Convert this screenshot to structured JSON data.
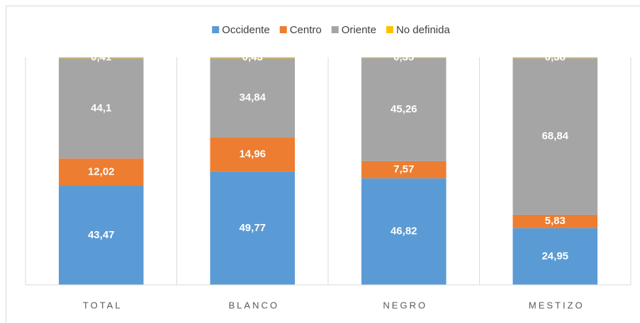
{
  "chart_data": {
    "type": "stacked_bar",
    "categories": [
      "TOTAL",
      "BLANCO",
      "NEGRO",
      "MESTIZO"
    ],
    "series": [
      {
        "name": "Occidente",
        "color": "#5b9bd5",
        "values": [
          43.47,
          49.77,
          46.82,
          24.95
        ],
        "value_labels": [
          "43,47",
          "49,77",
          "46,82",
          "24,95"
        ]
      },
      {
        "name": "Centro",
        "color": "#ed7d31",
        "values": [
          12.02,
          14.96,
          7.57,
          5.83
        ],
        "value_labels": [
          "12,02",
          "14,96",
          "7,57",
          "5,83"
        ]
      },
      {
        "name": "Oriente",
        "color": "#a5a5a5",
        "values": [
          44.1,
          34.84,
          45.26,
          68.84
        ],
        "value_labels": [
          "44,1",
          "34,84",
          "45,26",
          "68,84"
        ]
      },
      {
        "name": "No definida",
        "color": "#ffc000",
        "values": [
          0.41,
          0.43,
          0.35,
          0.38
        ],
        "value_labels": [
          "0,41",
          "0,43",
          "0,35",
          "0,38"
        ]
      }
    ],
    "legend": "top"
  }
}
